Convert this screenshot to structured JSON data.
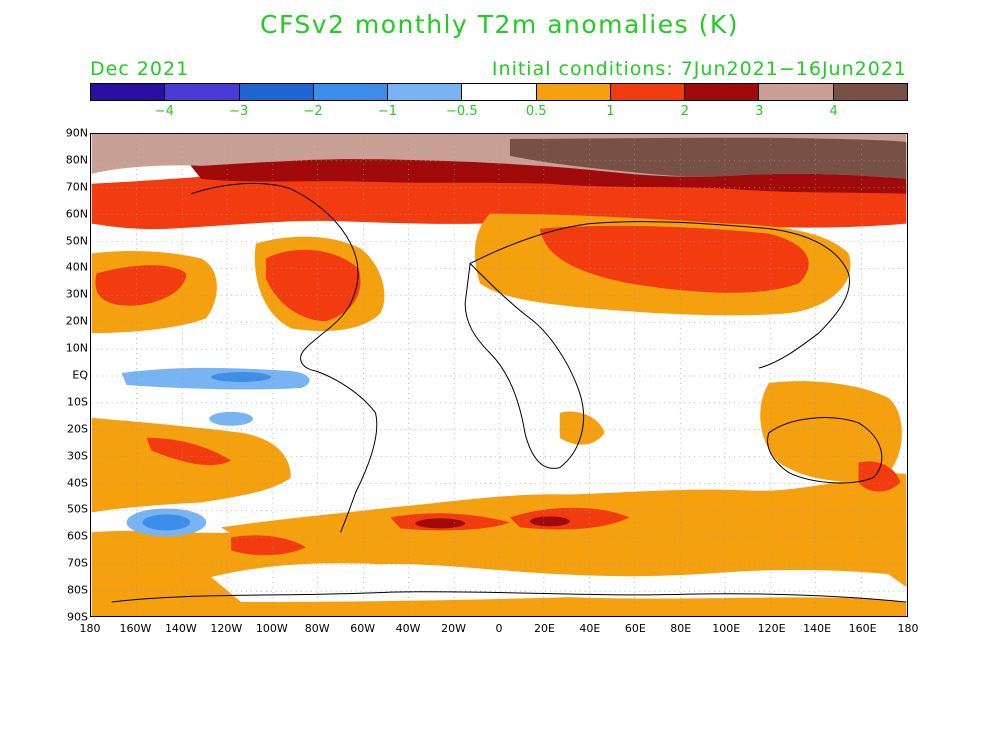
{
  "header": {
    "title": "CFSv2 monthly T2m anomalies (K)",
    "valid_label": "Dec 2021",
    "init_label": "Initial conditions: 7Jun2021−16Jun2021"
  },
  "colorbar": {
    "colors": [
      "#2a0fa0",
      "#4a3ad6",
      "#1e64d2",
      "#3c8ee8",
      "#78b4f4",
      "#ffffff",
      "#f5a00f",
      "#f23c0f",
      "#a00a0a",
      "#c8a096",
      "#785046"
    ],
    "labels": [
      "−4",
      "−3",
      "−2",
      "−1",
      "−0.5",
      "0.5",
      "1",
      "2",
      "3",
      "4"
    ]
  },
  "map": {
    "lat_labels": [
      "90N",
      "80N",
      "70N",
      "60N",
      "50N",
      "40N",
      "30N",
      "20N",
      "10N",
      "EQ",
      "10S",
      "20S",
      "30S",
      "40S",
      "50S",
      "60S",
      "70S",
      "80S",
      "90S"
    ],
    "lon_labels": [
      "180",
      "160W",
      "140W",
      "120W",
      "100W",
      "80W",
      "60W",
      "40W",
      "20W",
      "0",
      "20E",
      "40E",
      "60E",
      "80E",
      "100E",
      "120E",
      "140E",
      "160E",
      "180"
    ]
  }
}
